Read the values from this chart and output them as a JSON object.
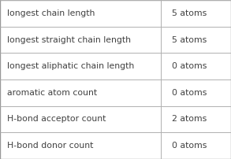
{
  "rows": [
    {
      "label": "longest chain length",
      "value": "5 atoms"
    },
    {
      "label": "longest straight chain length",
      "value": "5 atoms"
    },
    {
      "label": "longest aliphatic chain length",
      "value": "0 atoms"
    },
    {
      "label": "aromatic atom count",
      "value": "0 atoms"
    },
    {
      "label": "H-bond acceptor count",
      "value": "2 atoms"
    },
    {
      "label": "H-bond donor count",
      "value": "0 atoms"
    }
  ],
  "col_split": 0.695,
  "bg_color": "#ffffff",
  "border_color": "#b0b0b0",
  "text_color": "#404040",
  "font_size": 7.8,
  "outer_border_color": "#999999",
  "fig_width": 2.93,
  "fig_height": 2.02,
  "dpi": 100
}
